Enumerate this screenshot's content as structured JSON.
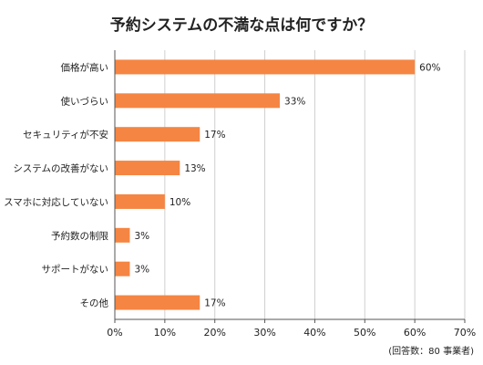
{
  "chart_data": {
    "type": "bar",
    "orientation": "horizontal",
    "title": "予約システムの不満な点は何ですか？",
    "categories": [
      "価格が高い",
      "使いづらい",
      "セキュリティが不安",
      "システムの改善がない",
      "スマホに対応していない",
      "予約数の制限",
      "サポートがない",
      "その他"
    ],
    "values": [
      60,
      33,
      17,
      13,
      10,
      3,
      3,
      17
    ],
    "value_labels": [
      "60%",
      "33%",
      "17%",
      "13%",
      "10%",
      "3%",
      "3%",
      "17%"
    ],
    "xlim": [
      0,
      70
    ],
    "ticks": [
      0,
      10,
      20,
      30,
      40,
      50,
      60,
      70
    ],
    "tick_labels": [
      "0%",
      "10%",
      "20%",
      "30%",
      "40%",
      "50%",
      "60%",
      "70%"
    ],
    "grid": true,
    "bar_color": "#f58542",
    "note": "(回答数：80 事業者)"
  }
}
